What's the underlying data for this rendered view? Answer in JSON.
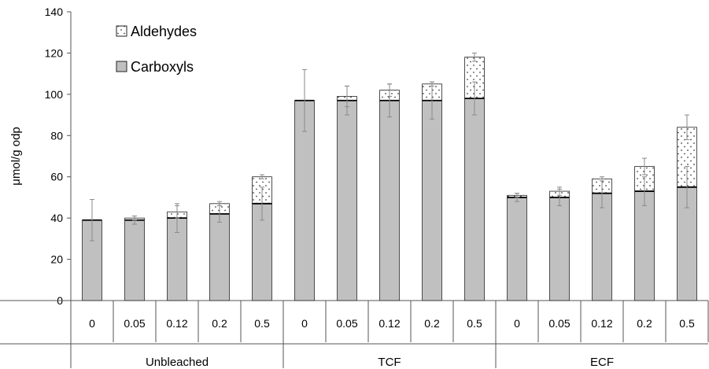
{
  "chart_data": {
    "type": "bar",
    "stacked": true,
    "ylabel": "μmol/g odp",
    "ylim": [
      0,
      140
    ],
    "yticks": [
      0,
      20,
      40,
      60,
      80,
      100,
      120,
      140
    ],
    "legend_position": "top-left",
    "groups": [
      {
        "name": "Unbleached",
        "categories": [
          "0",
          "0.05",
          "0.12",
          "0.2",
          "0.5"
        ]
      },
      {
        "name": "TCF",
        "categories": [
          "0",
          "0.05",
          "0.12",
          "0.2",
          "0.5"
        ]
      },
      {
        "name": "ECF",
        "categories": [
          "0",
          "0.05",
          "0.12",
          "0.2",
          "0.5"
        ]
      }
    ],
    "series": [
      {
        "name": "Carboxyls",
        "color": "#c0c0c0",
        "values": [
          39,
          39,
          40,
          42,
          47,
          97,
          97,
          97,
          97,
          98,
          50,
          50,
          52,
          53,
          55
        ],
        "error": [
          10,
          2,
          7,
          4,
          8,
          15,
          7,
          8,
          9,
          8,
          2,
          4,
          7,
          7,
          10
        ]
      },
      {
        "name": "Aldehydes",
        "color": "#ffffff",
        "pattern": "dots",
        "values": [
          0,
          1,
          3,
          5,
          13,
          0,
          2,
          5,
          8,
          20,
          1,
          3,
          7,
          12,
          29
        ],
        "error": [
          0,
          1,
          3,
          1,
          1,
          0,
          5,
          3,
          1,
          2,
          1,
          2,
          1,
          4,
          6
        ]
      }
    ]
  }
}
